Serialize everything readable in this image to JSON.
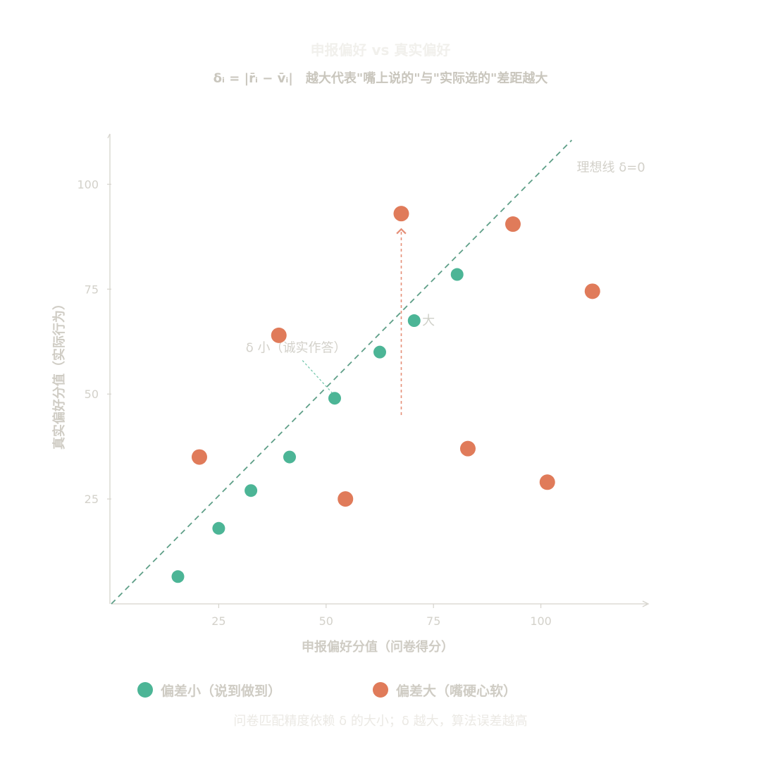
{
  "chart_data": {
    "type": "scatter",
    "title": "申报偏好 vs 真实偏好",
    "subtitle": "δᵢ = |r̄ᵢ − v̄ᵢ|　越大代表\"嘴上说的\"与\"实际选的\"差距越大",
    "xlabel": "申报偏好分值（问卷得分）",
    "ylabel": "真实偏好分值（实际行为）",
    "xlim": [
      0,
      125
    ],
    "ylim": [
      0,
      112
    ],
    "xticks": [
      25,
      50,
      75,
      100
    ],
    "yticks": [
      25,
      50,
      75,
      100
    ],
    "grid": false,
    "legend_position": "bottom",
    "series": [
      {
        "name": "偏差小（说到做到）",
        "color": "#4cb596",
        "points": [
          {
            "x": 15.5,
            "y": 6.5
          },
          {
            "x": 25.0,
            "y": 18.0
          },
          {
            "x": 32.5,
            "y": 27.0
          },
          {
            "x": 41.5,
            "y": 35.0
          },
          {
            "x": 52.0,
            "y": 49.0
          },
          {
            "x": 62.5,
            "y": 60.0
          },
          {
            "x": 70.5,
            "y": 67.5
          },
          {
            "x": 80.5,
            "y": 78.5
          }
        ]
      },
      {
        "name": "偏差大（嘴硬心软）",
        "color": "#e07b5a",
        "points": [
          {
            "x": 20.5,
            "y": 35.0
          },
          {
            "x": 39.0,
            "y": 64.0
          },
          {
            "x": 54.5,
            "y": 25.0
          },
          {
            "x": 67.5,
            "y": 93.0
          },
          {
            "x": 83.0,
            "y": 37.0
          },
          {
            "x": 93.5,
            "y": 90.5
          },
          {
            "x": 101.5,
            "y": 29.0
          },
          {
            "x": 112.0,
            "y": 74.5
          }
        ]
      }
    ],
    "reference_line": {
      "label": "理想线 δ=0",
      "color": "#5f9f88"
    },
    "annotations": {
      "small_delta": "δ 小（诚实作答）",
      "large_delta": "δ 大"
    },
    "footnote": "问卷匹配精度依赖 δ 的大小；δ 越大，算法误差越高"
  }
}
